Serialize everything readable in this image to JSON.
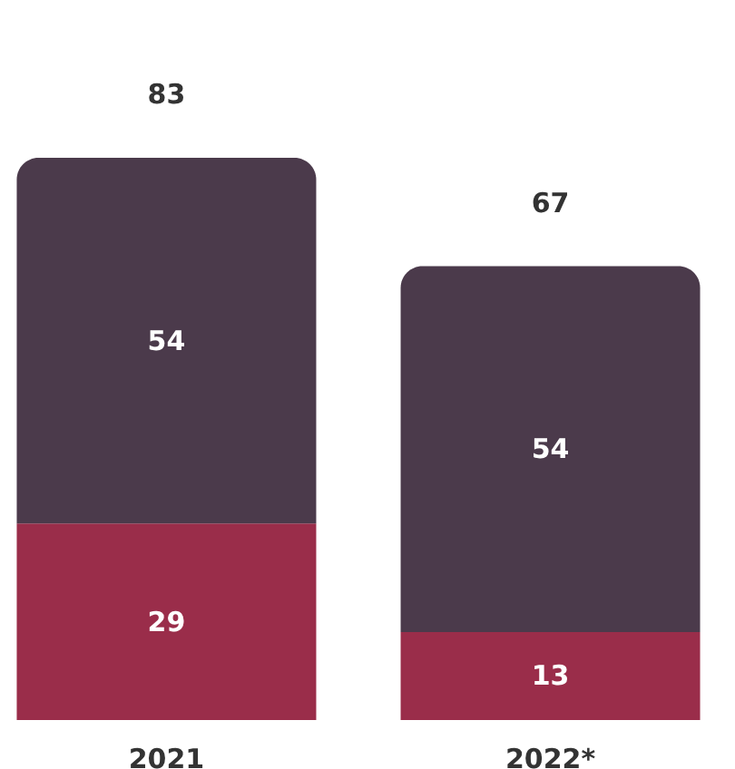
{
  "chart_data": {
    "type": "bar",
    "stacked": true,
    "categories": [
      "2021",
      "2022*"
    ],
    "series": [
      {
        "color": "#9a2d4a",
        "values": [
          29,
          13
        ]
      },
      {
        "color": "#4b3a4b",
        "values": [
          54,
          54
        ]
      }
    ],
    "data_labels": true,
    "totals": [
      "83",
      "67"
    ],
    "grid": false
  }
}
